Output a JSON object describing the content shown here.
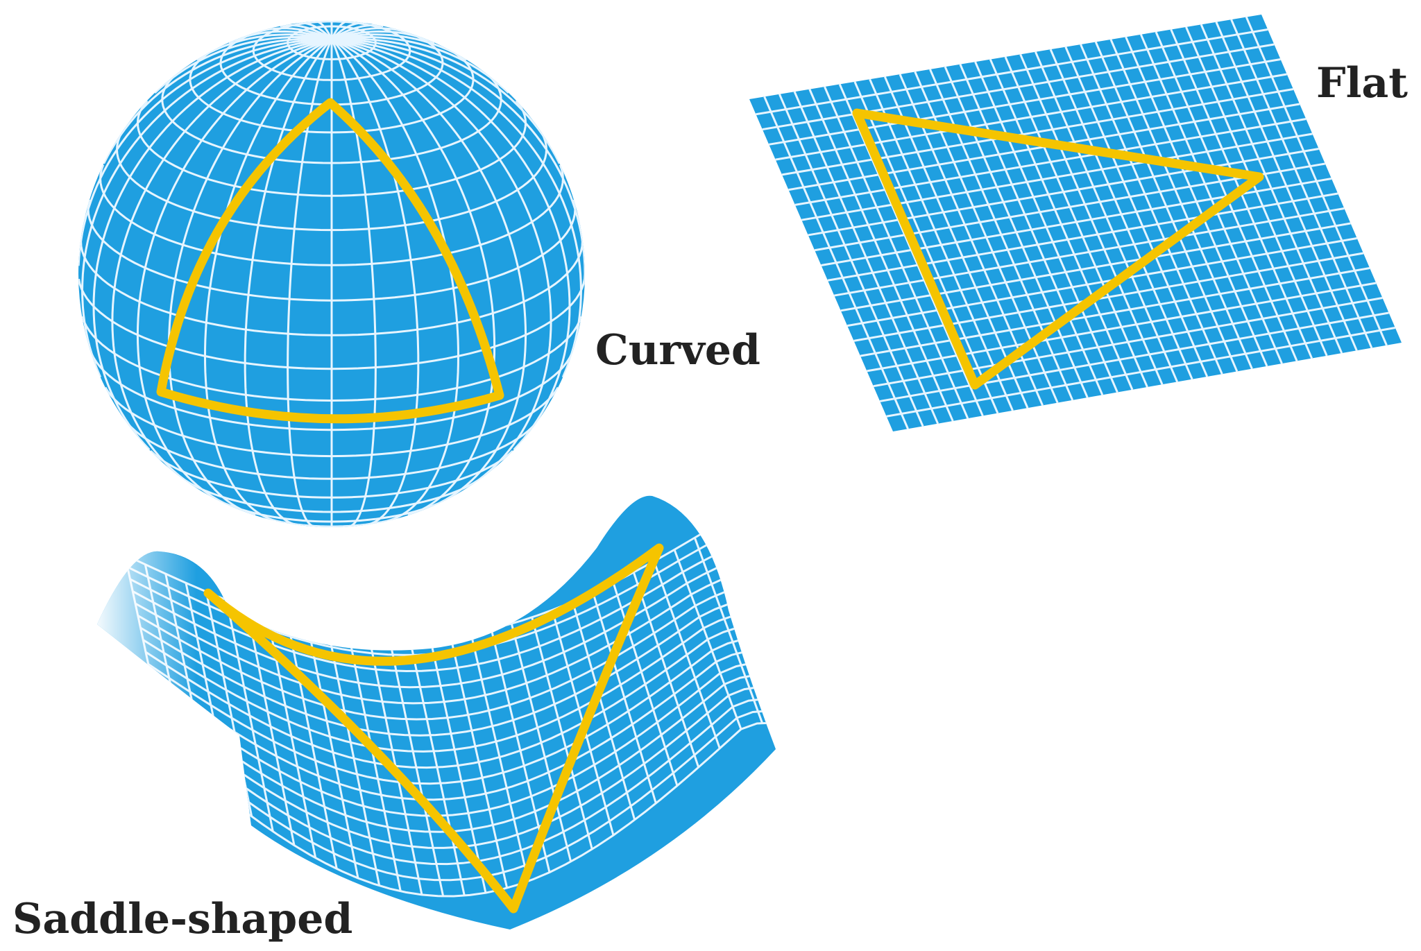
{
  "labels": {
    "flat": "Flat",
    "curved": "Curved",
    "saddle": "Saddle-shaped"
  },
  "colors": {
    "surface": "#1f9fe0",
    "grid": "#e6f5ff",
    "triangle": "#f5c400",
    "text": "#222222",
    "background": "#ffffff"
  },
  "shapes": [
    "sphere",
    "plane",
    "saddle"
  ]
}
